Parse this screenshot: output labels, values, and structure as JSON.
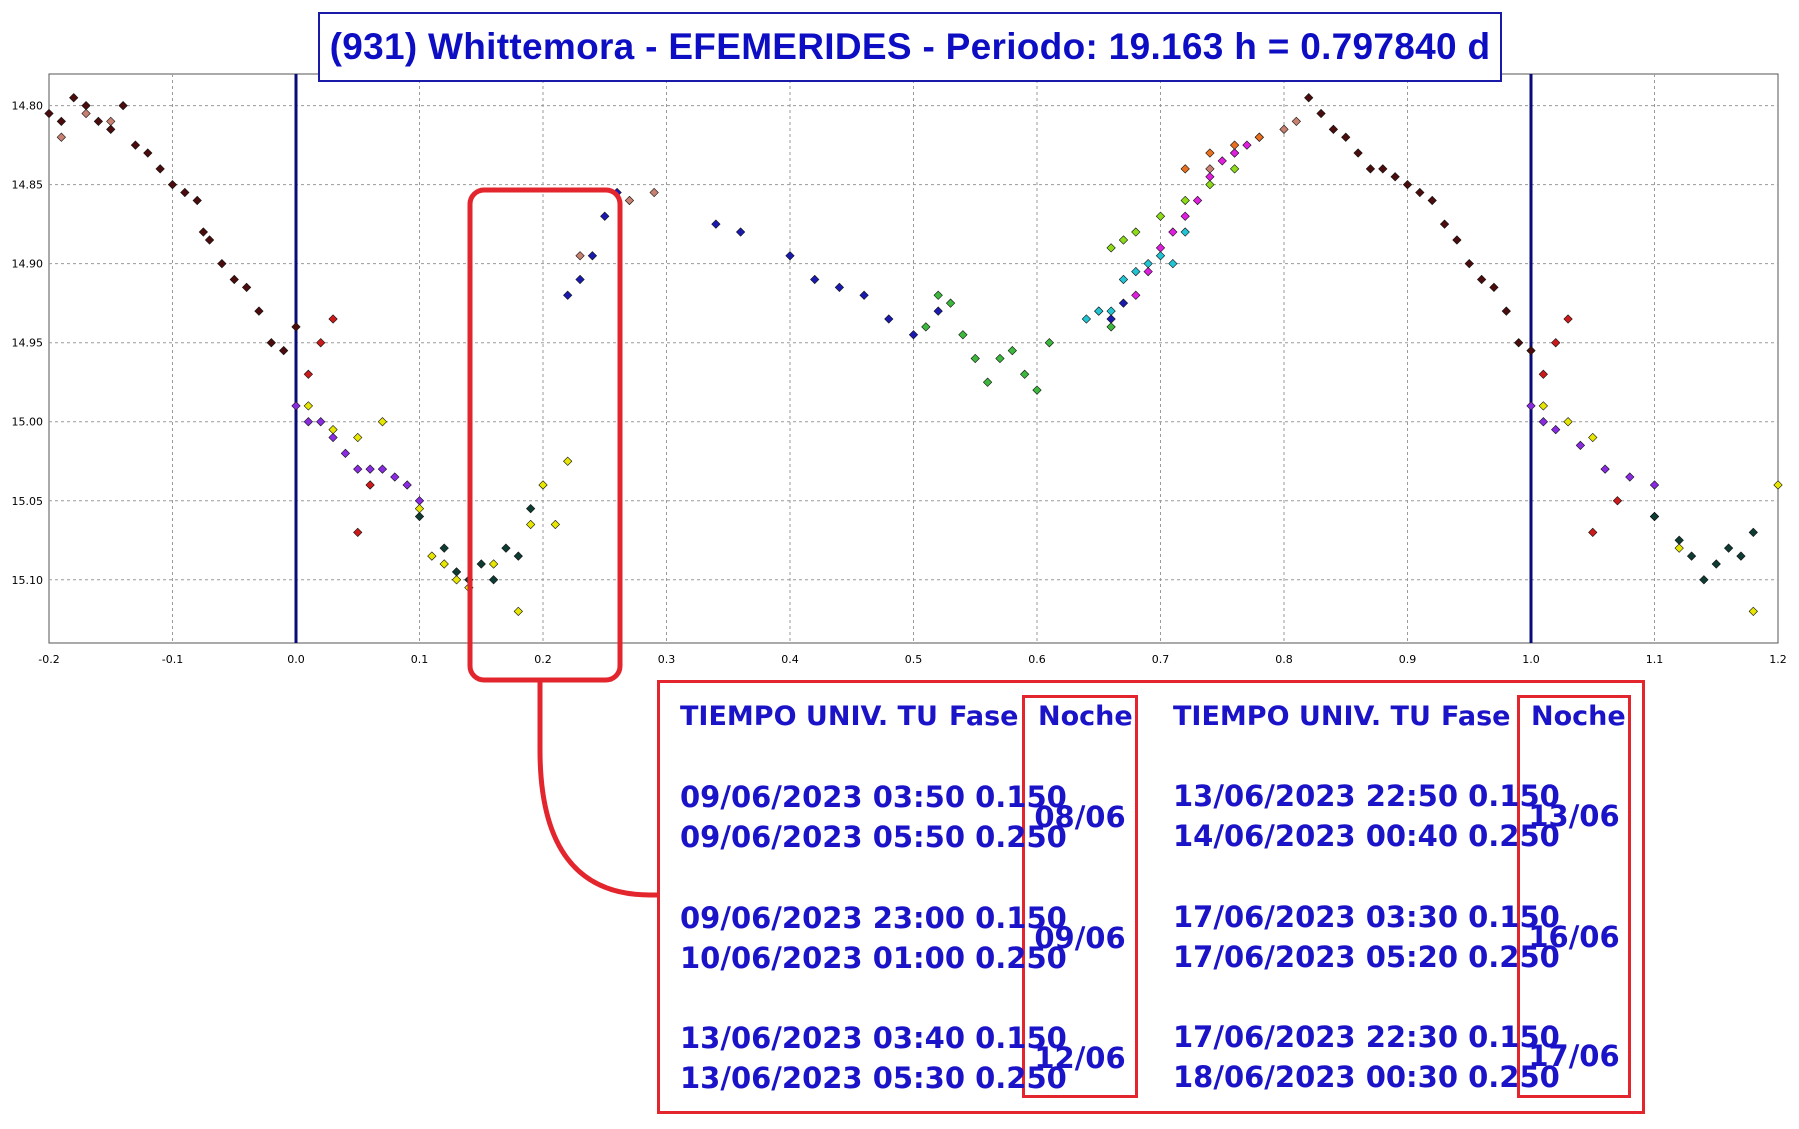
{
  "title": "(931) Whittemora - EFEMERIDES - Periodo: 19.163 h = 0.797840 d",
  "colors": {
    "title": "#0d0dc4",
    "highlight": "#e3262e",
    "marker_line": "#0a0a78",
    "grid": "#9a9a9a",
    "text": "#1a13c8"
  },
  "chart_data": {
    "type": "scatter",
    "title": "(931) Whittemora - EFEMERIDES - Periodo: 19.163 h = 0.797840 d",
    "xlabel": "",
    "ylabel": "",
    "xlim": [
      -0.2,
      1.2
    ],
    "ylim": [
      14.78,
      15.14
    ],
    "y_inverted": true,
    "grid": true,
    "x_ticks": [
      "-0.2",
      "-0.1",
      "0.0",
      "0.1",
      "0.2",
      "0.3",
      "0.4",
      "0.5",
      "0.6",
      "0.7",
      "0.8",
      "0.9",
      "1.0",
      "1.1",
      "1.2"
    ],
    "y_ticks": [
      "14.80",
      "14.85",
      "14.90",
      "14.95",
      "15.00",
      "15.05",
      "15.10"
    ],
    "vertical_lines": [
      0.0,
      1.0
    ],
    "highlight_x_range": [
      0.15,
      0.25
    ],
    "series": [
      {
        "color": "#4a0c0c",
        "points": [
          [
            -0.2,
            14.805
          ],
          [
            -0.19,
            14.81
          ],
          [
            -0.18,
            14.795
          ],
          [
            -0.17,
            14.8
          ],
          [
            -0.16,
            14.81
          ],
          [
            -0.15,
            14.815
          ],
          [
            -0.14,
            14.8
          ],
          [
            -0.13,
            14.825
          ],
          [
            -0.12,
            14.83
          ],
          [
            -0.11,
            14.84
          ],
          [
            -0.1,
            14.85
          ],
          [
            -0.09,
            14.855
          ],
          [
            -0.08,
            14.86
          ],
          [
            -0.075,
            14.88
          ],
          [
            -0.07,
            14.885
          ],
          [
            -0.06,
            14.9
          ],
          [
            -0.05,
            14.91
          ],
          [
            -0.04,
            14.915
          ],
          [
            -0.03,
            14.93
          ],
          [
            -0.02,
            14.95
          ],
          [
            -0.01,
            14.955
          ],
          [
            0.0,
            14.94
          ],
          [
            0.82,
            14.795
          ],
          [
            0.83,
            14.805
          ],
          [
            0.84,
            14.815
          ],
          [
            0.85,
            14.82
          ],
          [
            0.86,
            14.83
          ],
          [
            0.87,
            14.84
          ],
          [
            0.88,
            14.84
          ],
          [
            0.89,
            14.845
          ],
          [
            0.9,
            14.85
          ],
          [
            0.91,
            14.855
          ],
          [
            0.92,
            14.86
          ],
          [
            0.93,
            14.875
          ],
          [
            0.94,
            14.885
          ],
          [
            0.95,
            14.9
          ],
          [
            0.96,
            14.91
          ],
          [
            0.97,
            14.915
          ],
          [
            0.98,
            14.93
          ],
          [
            0.99,
            14.95
          ],
          [
            1.0,
            14.955
          ]
        ]
      },
      {
        "color": "#c88070",
        "points": [
          [
            -0.19,
            14.82
          ],
          [
            -0.17,
            14.805
          ],
          [
            -0.15,
            14.81
          ],
          [
            0.23,
            14.895
          ],
          [
            0.27,
            14.86
          ],
          [
            0.29,
            14.855
          ],
          [
            0.74,
            14.84
          ],
          [
            0.76,
            14.83
          ],
          [
            0.78,
            14.82
          ],
          [
            0.8,
            14.815
          ],
          [
            0.81,
            14.81
          ]
        ]
      },
      {
        "color": "#8a2be2",
        "points": [
          [
            0.0,
            14.99
          ],
          [
            0.01,
            15.0
          ],
          [
            0.02,
            15.0
          ],
          [
            0.03,
            15.01
          ],
          [
            0.04,
            15.02
          ],
          [
            0.05,
            15.03
          ],
          [
            0.06,
            15.03
          ],
          [
            0.07,
            15.03
          ],
          [
            0.08,
            15.035
          ],
          [
            0.09,
            15.04
          ],
          [
            0.1,
            15.05
          ],
          [
            1.0,
            14.99
          ],
          [
            1.01,
            15.0
          ],
          [
            1.02,
            15.005
          ],
          [
            1.04,
            15.015
          ],
          [
            1.06,
            15.03
          ],
          [
            1.08,
            15.035
          ],
          [
            1.1,
            15.04
          ]
        ]
      },
      {
        "color": "#e6e600",
        "points": [
          [
            0.01,
            14.99
          ],
          [
            0.03,
            15.005
          ],
          [
            0.05,
            15.01
          ],
          [
            0.07,
            15.0
          ],
          [
            0.1,
            15.055
          ],
          [
            0.11,
            15.085
          ],
          [
            0.12,
            15.09
          ],
          [
            0.13,
            15.1
          ],
          [
            0.14,
            15.105
          ],
          [
            0.16,
            15.09
          ],
          [
            0.18,
            15.12
          ],
          [
            0.19,
            15.065
          ],
          [
            0.2,
            15.04
          ],
          [
            0.21,
            15.065
          ],
          [
            0.22,
            15.025
          ],
          [
            1.01,
            14.99
          ],
          [
            1.03,
            15.0
          ],
          [
            1.05,
            15.01
          ],
          [
            1.1,
            15.06
          ],
          [
            1.12,
            15.08
          ],
          [
            1.18,
            15.12
          ],
          [
            1.2,
            15.04
          ]
        ]
      },
      {
        "color": "#cc1a1a",
        "points": [
          [
            0.01,
            14.97
          ],
          [
            0.02,
            14.95
          ],
          [
            0.03,
            14.935
          ],
          [
            0.05,
            15.07
          ],
          [
            0.06,
            15.04
          ],
          [
            1.01,
            14.97
          ],
          [
            1.02,
            14.95
          ],
          [
            1.03,
            14.935
          ],
          [
            1.05,
            15.07
          ],
          [
            1.07,
            15.05
          ]
        ]
      },
      {
        "color": "#0e3b32",
        "points": [
          [
            0.1,
            15.06
          ],
          [
            0.12,
            15.08
          ],
          [
            0.13,
            15.095
          ],
          [
            0.14,
            15.1
          ],
          [
            0.15,
            15.09
          ],
          [
            0.16,
            15.1
          ],
          [
            0.17,
            15.08
          ],
          [
            0.18,
            15.085
          ],
          [
            0.19,
            15.055
          ],
          [
            1.1,
            15.06
          ],
          [
            1.12,
            15.075
          ],
          [
            1.13,
            15.085
          ],
          [
            1.14,
            15.1
          ],
          [
            1.15,
            15.09
          ],
          [
            1.16,
            15.08
          ],
          [
            1.17,
            15.085
          ],
          [
            1.18,
            15.07
          ]
        ]
      },
      {
        "color": "#1a1ab0",
        "points": [
          [
            0.22,
            14.92
          ],
          [
            0.23,
            14.91
          ],
          [
            0.24,
            14.895
          ],
          [
            0.25,
            14.87
          ],
          [
            0.26,
            14.855
          ],
          [
            0.34,
            14.875
          ],
          [
            0.36,
            14.88
          ],
          [
            0.4,
            14.895
          ],
          [
            0.42,
            14.91
          ],
          [
            0.44,
            14.915
          ],
          [
            0.46,
            14.92
          ],
          [
            0.48,
            14.935
          ],
          [
            0.5,
            14.945
          ],
          [
            0.52,
            14.93
          ],
          [
            0.66,
            14.935
          ],
          [
            0.67,
            14.925
          ]
        ]
      },
      {
        "color": "#3cb83c",
        "points": [
          [
            0.51,
            14.94
          ],
          [
            0.52,
            14.92
          ],
          [
            0.53,
            14.925
          ],
          [
            0.54,
            14.945
          ],
          [
            0.55,
            14.96
          ],
          [
            0.56,
            14.975
          ],
          [
            0.57,
            14.96
          ],
          [
            0.58,
            14.955
          ],
          [
            0.59,
            14.97
          ],
          [
            0.6,
            14.98
          ],
          [
            0.61,
            14.95
          ],
          [
            0.65,
            14.93
          ],
          [
            0.66,
            14.94
          ]
        ]
      },
      {
        "color": "#22c4d4",
        "points": [
          [
            0.64,
            14.935
          ],
          [
            0.65,
            14.93
          ],
          [
            0.66,
            14.93
          ],
          [
            0.67,
            14.91
          ],
          [
            0.68,
            14.905
          ],
          [
            0.69,
            14.9
          ],
          [
            0.7,
            14.895
          ],
          [
            0.71,
            14.9
          ],
          [
            0.72,
            14.88
          ]
        ]
      },
      {
        "color": "#e01ee0",
        "points": [
          [
            0.68,
            14.92
          ],
          [
            0.69,
            14.905
          ],
          [
            0.7,
            14.89
          ],
          [
            0.71,
            14.88
          ],
          [
            0.72,
            14.87
          ],
          [
            0.73,
            14.86
          ],
          [
            0.74,
            14.845
          ],
          [
            0.75,
            14.835
          ],
          [
            0.76,
            14.83
          ],
          [
            0.77,
            14.825
          ]
        ]
      },
      {
        "color": "#8edb1a",
        "points": [
          [
            0.66,
            14.89
          ],
          [
            0.67,
            14.885
          ],
          [
            0.68,
            14.88
          ],
          [
            0.7,
            14.87
          ],
          [
            0.72,
            14.86
          ],
          [
            0.74,
            14.85
          ],
          [
            0.76,
            14.84
          ]
        ]
      },
      {
        "color": "#e87020",
        "points": [
          [
            0.72,
            14.84
          ],
          [
            0.74,
            14.83
          ],
          [
            0.76,
            14.825
          ],
          [
            0.78,
            14.82
          ]
        ]
      }
    ]
  },
  "ephemeris": {
    "headers": {
      "time": "TIEMPO UNIV. TU",
      "phase": "Fase",
      "night": "Noche"
    },
    "groups": [
      {
        "night": "08/06",
        "rows": [
          "09/06/2023  03:50 0.150",
          "09/06/2023  05:50 0.250"
        ]
      },
      {
        "night": "09/06",
        "rows": [
          "09/06/2023  23:00 0.150",
          "10/06/2023  01:00 0.250"
        ]
      },
      {
        "night": "12/06",
        "rows": [
          "13/06/2023  03:40 0.150",
          "13/06/2023  05:30 0.250"
        ]
      },
      {
        "night": "13/06",
        "rows": [
          "13/06/2023  22:50 0.150",
          "14/06/2023  00:40 0.250"
        ]
      },
      {
        "night": "16/06",
        "rows": [
          "17/06/2023  03:30 0.150",
          "17/06/2023  05:20 0.250"
        ]
      },
      {
        "night": "17/06",
        "rows": [
          "17/06/2023  22:30 0.150",
          "18/06/2023  00:30 0.250"
        ]
      }
    ]
  }
}
